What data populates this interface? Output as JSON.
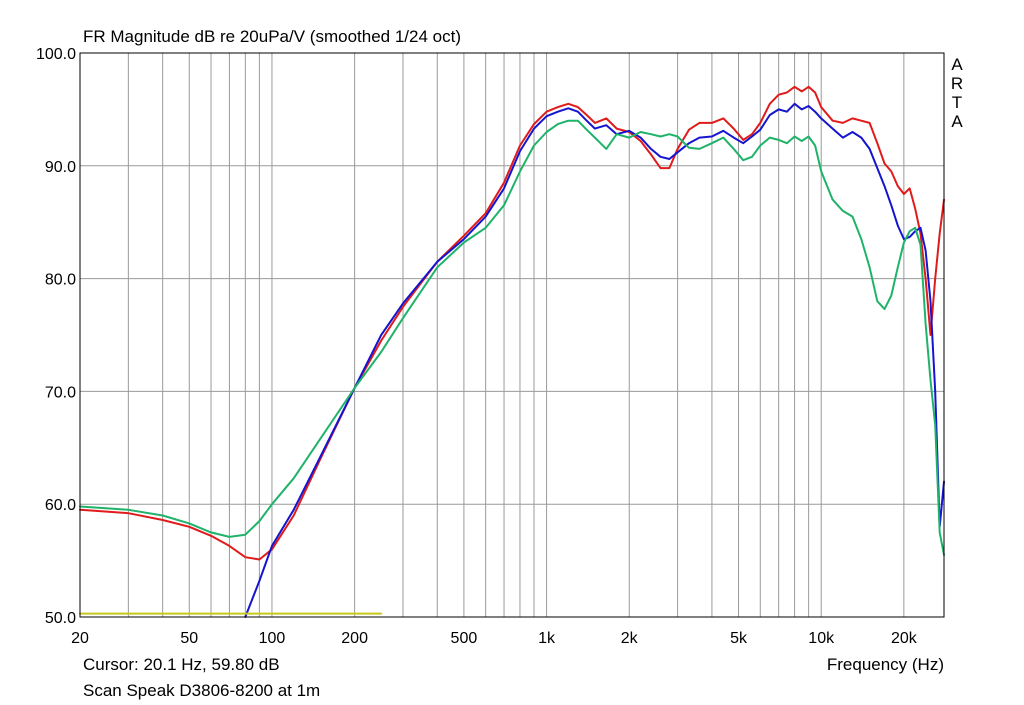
{
  "title": "FR Magnitude dB re 20uPa/V (smoothed 1/24 oct)",
  "cursor_readout": "Cursor: 20.1 Hz, 59.80 dB",
  "caption": "Scan Speak D3806-8200 at 1m",
  "watermark_letters": [
    "A",
    "R",
    "T",
    "A"
  ],
  "chart_data": {
    "type": "line",
    "title": "FR Magnitude dB re 20uPa/V (smoothed 1/24 oct)",
    "xlabel": "Frequency (Hz)",
    "ylabel": "",
    "x_scale": "log",
    "xlim": [
      20,
      28000
    ],
    "ylim": [
      50,
      100
    ],
    "grid": true,
    "x_ticks": [
      20,
      50,
      100,
      200,
      500,
      1000,
      2000,
      5000,
      10000,
      20000
    ],
    "x_tick_labels": [
      "20",
      "50",
      "100",
      "200",
      "500",
      "1k",
      "2k",
      "5k",
      "10k",
      "20k"
    ],
    "y_ticks": [
      50,
      60,
      70,
      80,
      90,
      100
    ],
    "y_tick_labels": [
      "50.0",
      "60.0",
      "70.0",
      "80.0",
      "90.0",
      "100.0"
    ],
    "colors": {
      "red": "#e01b1b",
      "blue": "#1515d0",
      "green": "#1fb36a",
      "reference": "#c8c81a",
      "grid": "#9a9a9a"
    },
    "series": [
      {
        "color": "#e01b1b",
        "points": [
          [
            20,
            59.5
          ],
          [
            30,
            59.2
          ],
          [
            40,
            58.6
          ],
          [
            50,
            58
          ],
          [
            60,
            57.2
          ],
          [
            70,
            56.3
          ],
          [
            80,
            55.3
          ],
          [
            90,
            55.1
          ],
          [
            100,
            56
          ],
          [
            120,
            59
          ],
          [
            150,
            64
          ],
          [
            200,
            70.3
          ],
          [
            250,
            74.5
          ],
          [
            300,
            77.5
          ],
          [
            400,
            81.5
          ],
          [
            500,
            83.8
          ],
          [
            600,
            85.8
          ],
          [
            700,
            88.5
          ],
          [
            800,
            91.8
          ],
          [
            900,
            93.7
          ],
          [
            1000,
            94.8
          ],
          [
            1100,
            95.2
          ],
          [
            1200,
            95.5
          ],
          [
            1300,
            95.2
          ],
          [
            1400,
            94.5
          ],
          [
            1500,
            93.8
          ],
          [
            1650,
            94.2
          ],
          [
            1800,
            93.3
          ],
          [
            2000,
            93
          ],
          [
            2200,
            92.2
          ],
          [
            2400,
            91
          ],
          [
            2600,
            89.8
          ],
          [
            2800,
            89.8
          ],
          [
            3000,
            91.5
          ],
          [
            3300,
            93.2
          ],
          [
            3600,
            93.8
          ],
          [
            4000,
            93.8
          ],
          [
            4400,
            94.2
          ],
          [
            4800,
            93.3
          ],
          [
            5200,
            92.3
          ],
          [
            5600,
            92.8
          ],
          [
            6000,
            93.8
          ],
          [
            6500,
            95.5
          ],
          [
            7000,
            96.3
          ],
          [
            7500,
            96.5
          ],
          [
            8000,
            97
          ],
          [
            8500,
            96.6
          ],
          [
            9000,
            97
          ],
          [
            9500,
            96.5
          ],
          [
            10000,
            95.2
          ],
          [
            11000,
            94
          ],
          [
            12000,
            93.8
          ],
          [
            13000,
            94.2
          ],
          [
            14000,
            94
          ],
          [
            15000,
            93.8
          ],
          [
            16000,
            92
          ],
          [
            17000,
            90.2
          ],
          [
            18000,
            89.5
          ],
          [
            19000,
            88.2
          ],
          [
            20000,
            87.5
          ],
          [
            21000,
            88
          ],
          [
            22000,
            86.2
          ],
          [
            23000,
            84
          ],
          [
            24000,
            80
          ],
          [
            25000,
            75
          ],
          [
            26000,
            80
          ],
          [
            27000,
            84
          ],
          [
            28000,
            87
          ]
        ]
      },
      {
        "color": "#1515d0",
        "points": [
          [
            80,
            50
          ],
          [
            90,
            53.2
          ],
          [
            100,
            56.3
          ],
          [
            120,
            59.5
          ],
          [
            150,
            64.2
          ],
          [
            200,
            70.3
          ],
          [
            250,
            75
          ],
          [
            300,
            77.8
          ],
          [
            400,
            81.5
          ],
          [
            500,
            83.5
          ],
          [
            600,
            85.5
          ],
          [
            700,
            88
          ],
          [
            800,
            91.3
          ],
          [
            900,
            93.3
          ],
          [
            1000,
            94.4
          ],
          [
            1100,
            94.8
          ],
          [
            1200,
            95.1
          ],
          [
            1300,
            94.8
          ],
          [
            1400,
            94
          ],
          [
            1500,
            93.3
          ],
          [
            1650,
            93.6
          ],
          [
            1800,
            92.8
          ],
          [
            2000,
            93.1
          ],
          [
            2200,
            92.5
          ],
          [
            2400,
            91.5
          ],
          [
            2600,
            90.8
          ],
          [
            2800,
            90.6
          ],
          [
            3000,
            91.2
          ],
          [
            3300,
            92
          ],
          [
            3600,
            92.5
          ],
          [
            4000,
            92.6
          ],
          [
            4400,
            93.1
          ],
          [
            4800,
            92.5
          ],
          [
            5200,
            92
          ],
          [
            5600,
            92.6
          ],
          [
            6000,
            93.2
          ],
          [
            6500,
            94.5
          ],
          [
            7000,
            95
          ],
          [
            7500,
            94.8
          ],
          [
            8000,
            95.5
          ],
          [
            8500,
            95
          ],
          [
            9000,
            95.3
          ],
          [
            9500,
            94.8
          ],
          [
            10000,
            94.2
          ],
          [
            11000,
            93.3
          ],
          [
            12000,
            92.5
          ],
          [
            13000,
            93
          ],
          [
            14000,
            92.5
          ],
          [
            15000,
            91.5
          ],
          [
            16000,
            89.8
          ],
          [
            17000,
            88.2
          ],
          [
            18000,
            86.5
          ],
          [
            19000,
            84.7
          ],
          [
            20000,
            83.5
          ],
          [
            21000,
            83.7
          ],
          [
            22000,
            84.2
          ],
          [
            23000,
            84.5
          ],
          [
            24000,
            82.5
          ],
          [
            25000,
            78
          ],
          [
            26000,
            70
          ],
          [
            27000,
            58
          ],
          [
            28000,
            62
          ]
        ]
      },
      {
        "color": "#1fb36a",
        "points": [
          [
            20,
            59.8
          ],
          [
            30,
            59.5
          ],
          [
            40,
            59
          ],
          [
            50,
            58.3
          ],
          [
            60,
            57.5
          ],
          [
            70,
            57.1
          ],
          [
            80,
            57.3
          ],
          [
            90,
            58.5
          ],
          [
            100,
            60
          ],
          [
            120,
            62.3
          ],
          [
            150,
            65.8
          ],
          [
            200,
            70.3
          ],
          [
            250,
            73.5
          ],
          [
            300,
            76.5
          ],
          [
            400,
            81
          ],
          [
            500,
            83.2
          ],
          [
            600,
            84.5
          ],
          [
            700,
            86.5
          ],
          [
            800,
            89.5
          ],
          [
            900,
            91.8
          ],
          [
            1000,
            93
          ],
          [
            1100,
            93.7
          ],
          [
            1200,
            94
          ],
          [
            1300,
            94
          ],
          [
            1400,
            93.2
          ],
          [
            1500,
            92.5
          ],
          [
            1650,
            91.5
          ],
          [
            1800,
            92.8
          ],
          [
            2000,
            92.5
          ],
          [
            2200,
            93
          ],
          [
            2400,
            92.8
          ],
          [
            2600,
            92.6
          ],
          [
            2800,
            92.8
          ],
          [
            3000,
            92.6
          ],
          [
            3300,
            91.6
          ],
          [
            3600,
            91.5
          ],
          [
            4000,
            92
          ],
          [
            4400,
            92.5
          ],
          [
            4800,
            91.5
          ],
          [
            5200,
            90.5
          ],
          [
            5600,
            90.8
          ],
          [
            6000,
            91.8
          ],
          [
            6500,
            92.5
          ],
          [
            7000,
            92.3
          ],
          [
            7500,
            92
          ],
          [
            8000,
            92.6
          ],
          [
            8500,
            92.2
          ],
          [
            9000,
            92.6
          ],
          [
            9500,
            91.8
          ],
          [
            10000,
            89.5
          ],
          [
            11000,
            87
          ],
          [
            12000,
            86
          ],
          [
            13000,
            85.5
          ],
          [
            14000,
            83.5
          ],
          [
            15000,
            81
          ],
          [
            16000,
            78
          ],
          [
            17000,
            77.3
          ],
          [
            18000,
            78.5
          ],
          [
            19000,
            81
          ],
          [
            20000,
            83.2
          ],
          [
            21000,
            84.2
          ],
          [
            22000,
            84.5
          ],
          [
            23000,
            83
          ],
          [
            24000,
            76
          ],
          [
            25000,
            71
          ],
          [
            26000,
            67
          ],
          [
            27000,
            57.5
          ],
          [
            28000,
            55.5
          ]
        ]
      },
      {
        "color": "#c8c81a",
        "points": [
          [
            20,
            50.3
          ],
          [
            250,
            50.3
          ]
        ]
      }
    ]
  }
}
